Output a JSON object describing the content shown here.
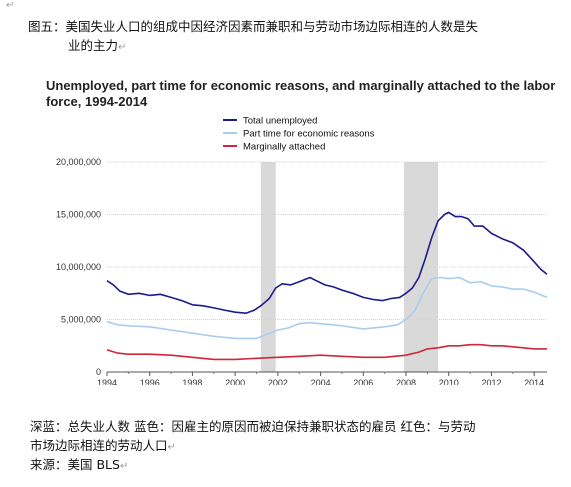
{
  "caption_top_line1": "图五：美国失业人口的组成中因经济因素而兼职和与劳动市场边际相连的人数是失",
  "caption_top_line2": "业的主力",
  "para_mark": "↵",
  "caption_bottom_line1": "深蓝：总失业人数  蓝色：因雇主的原因而被迫保持兼职状态的雇员  红色：与劳动",
  "caption_bottom_line2": "市场边际相连的劳动人口",
  "source_text": "来源：美国 BLS",
  "colors": {
    "total": "#1f1a8c",
    "parttime": "#a9cdf0",
    "marginal": "#d0253a",
    "recession": "#d9d9d9",
    "grid": "#d4d4d4"
  },
  "chart_data": {
    "type": "line",
    "title": "Unemployed, part time for economic reasons, and marginally attached to the labor force, 1994-2014",
    "legend_position": "top-center",
    "grid": "horizontal",
    "xlim": [
      1994,
      2014.6
    ],
    "ylim": [
      0,
      20000000
    ],
    "x_ticks": [
      "1994",
      "1996",
      "1998",
      "2000",
      "2002",
      "2004",
      "2006",
      "2008",
      "2010",
      "2012",
      "2014"
    ],
    "y_ticks": [
      "0",
      "5,000,000",
      "10,000,000",
      "15,000,000",
      "20,000,000"
    ],
    "recessions": [
      [
        2001.2,
        2001.9
      ],
      [
        2007.9,
        2009.5
      ]
    ],
    "series": [
      {
        "name": "Total unemployed",
        "color": "#1f1a8c",
        "points": [
          [
            1994.0,
            8700000
          ],
          [
            1994.3,
            8300000
          ],
          [
            1994.6,
            7700000
          ],
          [
            1995.0,
            7400000
          ],
          [
            1995.5,
            7500000
          ],
          [
            1996.0,
            7300000
          ],
          [
            1996.5,
            7400000
          ],
          [
            1997.0,
            7100000
          ],
          [
            1997.5,
            6800000
          ],
          [
            1998.0,
            6400000
          ],
          [
            1998.5,
            6300000
          ],
          [
            1999.0,
            6100000
          ],
          [
            1999.5,
            5900000
          ],
          [
            2000.0,
            5700000
          ],
          [
            2000.5,
            5600000
          ],
          [
            2000.9,
            5900000
          ],
          [
            2001.2,
            6300000
          ],
          [
            2001.6,
            7000000
          ],
          [
            2001.9,
            8000000
          ],
          [
            2002.2,
            8400000
          ],
          [
            2002.6,
            8300000
          ],
          [
            2003.0,
            8600000
          ],
          [
            2003.5,
            9000000
          ],
          [
            2003.8,
            8700000
          ],
          [
            2004.2,
            8300000
          ],
          [
            2004.6,
            8100000
          ],
          [
            2005.0,
            7800000
          ],
          [
            2005.5,
            7500000
          ],
          [
            2006.0,
            7100000
          ],
          [
            2006.5,
            6900000
          ],
          [
            2006.9,
            6800000
          ],
          [
            2007.3,
            7000000
          ],
          [
            2007.7,
            7100000
          ],
          [
            2008.0,
            7500000
          ],
          [
            2008.3,
            8000000
          ],
          [
            2008.6,
            9000000
          ],
          [
            2008.9,
            10800000
          ],
          [
            2009.2,
            12800000
          ],
          [
            2009.5,
            14400000
          ],
          [
            2009.8,
            15000000
          ],
          [
            2010.0,
            15200000
          ],
          [
            2010.3,
            14800000
          ],
          [
            2010.6,
            14800000
          ],
          [
            2010.9,
            14600000
          ],
          [
            2011.2,
            13900000
          ],
          [
            2011.6,
            13900000
          ],
          [
            2012.0,
            13200000
          ],
          [
            2012.5,
            12700000
          ],
          [
            2013.0,
            12300000
          ],
          [
            2013.5,
            11600000
          ],
          [
            2014.0,
            10500000
          ],
          [
            2014.3,
            9800000
          ],
          [
            2014.6,
            9300000
          ]
        ]
      },
      {
        "name": "Part time for economic reasons",
        "color": "#a9cdf0",
        "points": [
          [
            1994.0,
            4800000
          ],
          [
            1994.5,
            4500000
          ],
          [
            1995.0,
            4400000
          ],
          [
            1996.0,
            4300000
          ],
          [
            1997.0,
            4000000
          ],
          [
            1998.0,
            3700000
          ],
          [
            1999.0,
            3400000
          ],
          [
            2000.0,
            3200000
          ],
          [
            2001.0,
            3200000
          ],
          [
            2001.5,
            3600000
          ],
          [
            2002.0,
            4000000
          ],
          [
            2002.5,
            4200000
          ],
          [
            2003.0,
            4600000
          ],
          [
            2003.5,
            4700000
          ],
          [
            2004.0,
            4600000
          ],
          [
            2005.0,
            4400000
          ],
          [
            2006.0,
            4100000
          ],
          [
            2007.0,
            4300000
          ],
          [
            2007.6,
            4500000
          ],
          [
            2008.0,
            5000000
          ],
          [
            2008.4,
            5800000
          ],
          [
            2008.8,
            7500000
          ],
          [
            2009.2,
            8900000
          ],
          [
            2009.6,
            9000000
          ],
          [
            2010.0,
            8900000
          ],
          [
            2010.5,
            9000000
          ],
          [
            2011.0,
            8500000
          ],
          [
            2011.5,
            8600000
          ],
          [
            2012.0,
            8200000
          ],
          [
            2012.5,
            8100000
          ],
          [
            2013.0,
            7900000
          ],
          [
            2013.5,
            7900000
          ],
          [
            2014.0,
            7600000
          ],
          [
            2014.6,
            7100000
          ]
        ]
      },
      {
        "name": "Marginally attached",
        "color": "#d0253a",
        "points": [
          [
            1994.0,
            2100000
          ],
          [
            1994.5,
            1800000
          ],
          [
            1995.0,
            1700000
          ],
          [
            1996.0,
            1700000
          ],
          [
            1997.0,
            1600000
          ],
          [
            1998.0,
            1400000
          ],
          [
            1999.0,
            1200000
          ],
          [
            2000.0,
            1200000
          ],
          [
            2001.0,
            1300000
          ],
          [
            2002.0,
            1400000
          ],
          [
            2003.0,
            1500000
          ],
          [
            2004.0,
            1600000
          ],
          [
            2005.0,
            1500000
          ],
          [
            2006.0,
            1400000
          ],
          [
            2007.0,
            1400000
          ],
          [
            2008.0,
            1600000
          ],
          [
            2008.6,
            1900000
          ],
          [
            2009.0,
            2200000
          ],
          [
            2009.5,
            2300000
          ],
          [
            2010.0,
            2500000
          ],
          [
            2010.5,
            2500000
          ],
          [
            2011.0,
            2600000
          ],
          [
            2011.5,
            2600000
          ],
          [
            2012.0,
            2500000
          ],
          [
            2012.5,
            2500000
          ],
          [
            2013.0,
            2400000
          ],
          [
            2013.5,
            2300000
          ],
          [
            2014.0,
            2200000
          ],
          [
            2014.6,
            2200000
          ]
        ]
      }
    ]
  }
}
